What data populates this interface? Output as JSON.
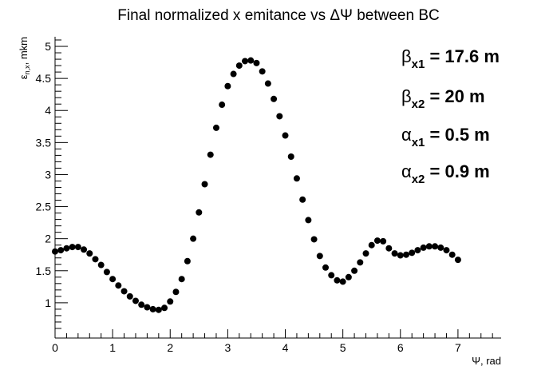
{
  "chart_data": {
    "type": "scatter",
    "title": "Final normalized x emitance vs ΔΨ between BC",
    "xlabel": "Ψ, rad",
    "ylabel": "ε",
    "ylabel_sub": "n,x",
    "ylabel_unit": ", mkm",
    "xlim": [
      0,
      7.75
    ],
    "ylim": [
      0.45,
      5.15
    ],
    "x_ticks": [
      "0",
      "1",
      "2",
      "3",
      "4",
      "5",
      "6",
      "7"
    ],
    "y_ticks": [
      "1",
      "1.5",
      "2",
      "2.5",
      "3",
      "3.5",
      "4",
      "4.5",
      "5"
    ],
    "grid": false,
    "marker_color": "#000000",
    "annotations": [
      {
        "symbol": "β",
        "sub": "x1",
        "text": " = 17.6 m"
      },
      {
        "symbol": "β",
        "sub": "x2",
        "text": " = 20 m"
      },
      {
        "symbol": "α",
        "sub": "x1",
        "text": " = 0.5 m"
      },
      {
        "symbol": "α",
        "sub": "x2",
        "text": " = 0.9 m"
      }
    ],
    "series": [
      {
        "x": [
          0.0,
          0.1,
          0.2,
          0.3,
          0.4,
          0.5,
          0.6,
          0.7,
          0.8,
          0.9,
          1.0,
          1.1,
          1.2,
          1.3,
          1.4,
          1.5,
          1.6,
          1.7,
          1.8,
          1.9,
          2.0,
          2.1,
          2.2,
          2.3,
          2.4,
          2.5,
          2.6,
          2.7,
          2.8,
          2.9,
          3.0,
          3.1,
          3.2,
          3.3,
          3.4,
          3.5,
          3.6,
          3.7,
          3.8,
          3.9,
          4.0,
          4.1,
          4.2,
          4.3,
          4.4,
          4.5,
          4.6,
          4.7,
          4.8,
          4.9,
          5.0,
          5.1,
          5.2,
          5.3,
          5.4,
          5.5,
          5.6,
          5.7,
          5.8,
          5.9,
          6.0,
          6.1,
          6.2,
          6.3,
          6.4,
          6.5,
          6.6,
          6.7,
          6.8,
          6.9,
          7.0
        ],
        "y": [
          1.8,
          1.82,
          1.85,
          1.87,
          1.87,
          1.83,
          1.77,
          1.68,
          1.59,
          1.48,
          1.37,
          1.27,
          1.18,
          1.1,
          1.03,
          0.97,
          0.93,
          0.9,
          0.89,
          0.92,
          1.02,
          1.17,
          1.37,
          1.65,
          2.0,
          2.41,
          2.85,
          3.31,
          3.73,
          4.09,
          4.38,
          4.57,
          4.7,
          4.77,
          4.78,
          4.74,
          4.61,
          4.42,
          4.18,
          3.91,
          3.61,
          3.28,
          2.94,
          2.61,
          2.29,
          1.99,
          1.73,
          1.55,
          1.43,
          1.35,
          1.33,
          1.4,
          1.5,
          1.63,
          1.77,
          1.9,
          1.97,
          1.96,
          1.85,
          1.77,
          1.74,
          1.75,
          1.78,
          1.82,
          1.86,
          1.88,
          1.88,
          1.86,
          1.82,
          1.75,
          1.67
        ]
      }
    ]
  }
}
